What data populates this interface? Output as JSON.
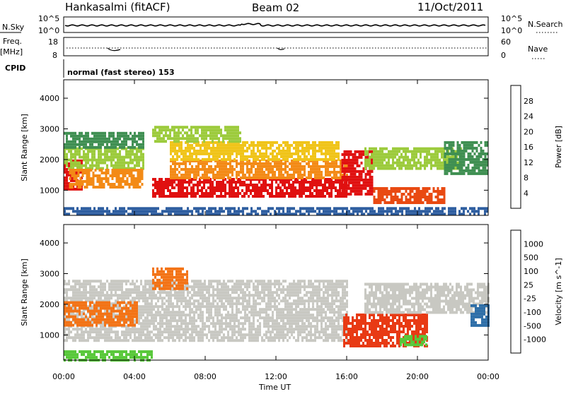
{
  "header": {
    "station": "Hankasalmi (fitACF)",
    "beam": "Beam 02",
    "date": "11/Oct/2011"
  },
  "strip_labels": {
    "nsky": "N.Sky",
    "nsearch": "N.Search",
    "freq_line1": "Freq.",
    "freq_line2": "[MHz]",
    "nave": "Nave",
    "cpid": "CPID",
    "cpid_text": "normal (fast stereo) 153",
    "nsky_ticks": [
      "10^5",
      "10^0"
    ],
    "nsearch_ticks": [
      "10^5",
      "10^0"
    ],
    "freq_ticks": [
      "18",
      "8"
    ],
    "nave_ticks": [
      "60",
      "0"
    ]
  },
  "chart_data": {
    "type": "heatmap",
    "x_axis": {
      "label": "Time UT",
      "range": [
        "00:00",
        "24:00"
      ],
      "ticks": [
        "00:00",
        "04:00",
        "08:00",
        "12:00",
        "16:00",
        "20:00",
        "00:00"
      ]
    },
    "panels": [
      {
        "name": "power",
        "ylabel": "Slant Range [km]",
        "ylim": [
          180,
          4600
        ],
        "yticks": [
          1000,
          2000,
          3000,
          4000
        ],
        "colorbar": {
          "label": "Power [dB]",
          "ticks": [
            "4",
            "8",
            "12",
            "16",
            "20",
            "24",
            "28"
          ],
          "colors": [
            "#1a2ee0",
            "#2e5ea0",
            "#3f8f52",
            "#9ccb3c",
            "#f0c419",
            "#f38a16",
            "#e94a12",
            "#e01010"
          ]
        },
        "regions": [
          {
            "t0": 0.0,
            "t1": 1.0,
            "r0": 1000,
            "r1": 2000,
            "level": 7,
            "note": ""
          },
          {
            "t0": 0.0,
            "t1": 4.5,
            "r0": 1700,
            "r1": 2400,
            "level": 3
          },
          {
            "t0": 0.3,
            "t1": 4.5,
            "r0": 1100,
            "r1": 1700,
            "level": 5
          },
          {
            "t0": 0.0,
            "t1": 4.5,
            "r0": 2400,
            "r1": 2900,
            "level": 2
          },
          {
            "t0": 5.0,
            "t1": 16.0,
            "r0": 800,
            "r1": 1400,
            "level": 7
          },
          {
            "t0": 6.0,
            "t1": 16.0,
            "r0": 1400,
            "r1": 2000,
            "level": 5
          },
          {
            "t0": 6.0,
            "t1": 15.5,
            "r0": 2000,
            "r1": 2600,
            "level": 4
          },
          {
            "t0": 5.0,
            "t1": 10.0,
            "r0": 2600,
            "r1": 3100,
            "level": 3
          },
          {
            "t0": 15.7,
            "t1": 17.5,
            "r0": 900,
            "r1": 2300,
            "level": 7
          },
          {
            "t0": 17.5,
            "t1": 21.5,
            "r0": 600,
            "r1": 1100,
            "level": 6
          },
          {
            "t0": 17.0,
            "t1": 22.5,
            "r0": 1700,
            "r1": 2400,
            "level": 3
          },
          {
            "t0": 21.5,
            "t1": 24.0,
            "r0": 1500,
            "r1": 2600,
            "level": 2
          },
          {
            "t0": 0.0,
            "t1": 24.0,
            "r0": 180,
            "r1": 450,
            "level": 1
          }
        ]
      },
      {
        "name": "velocity",
        "ylabel": "Slant Range [km]",
        "ylim": [
          180,
          4600
        ],
        "yticks": [
          1000,
          2000,
          3000,
          4000
        ],
        "colorbar": {
          "label": "Velocity [m s^-1]",
          "ticks": [
            "1000",
            "500",
            "100",
            "25",
            "-25",
            "-100",
            "-500",
            "-1000"
          ],
          "colors": [
            "#1a3cc8",
            "#2f6fa8",
            "#3c8f3c",
            "#58c83a",
            "#c8c8c2",
            "#e8e8e2",
            "#f5a623",
            "#f37316",
            "#e83a14"
          ]
        },
        "regions": [
          {
            "t0": 0.0,
            "t1": 16.0,
            "r0": 800,
            "r1": 2800,
            "level": 4
          },
          {
            "t0": 0.0,
            "t1": 4.2,
            "r0": 1300,
            "r1": 2100,
            "level": 7
          },
          {
            "t0": 5.0,
            "t1": 7.0,
            "r0": 2500,
            "r1": 3200,
            "level": 7
          },
          {
            "t0": 15.8,
            "t1": 20.5,
            "r0": 600,
            "r1": 1700,
            "level": 8
          },
          {
            "t0": 19.0,
            "t1": 20.5,
            "r0": 700,
            "r1": 1000,
            "level": 3
          },
          {
            "t0": 17.0,
            "t1": 24.0,
            "r0": 1700,
            "r1": 2700,
            "level": 4
          },
          {
            "t0": 23.0,
            "t1": 24.0,
            "r0": 1300,
            "r1": 2000,
            "level": 1
          },
          {
            "t0": 0.0,
            "t1": 5.0,
            "r0": 180,
            "r1": 500,
            "level": 3
          }
        ]
      }
    ]
  }
}
